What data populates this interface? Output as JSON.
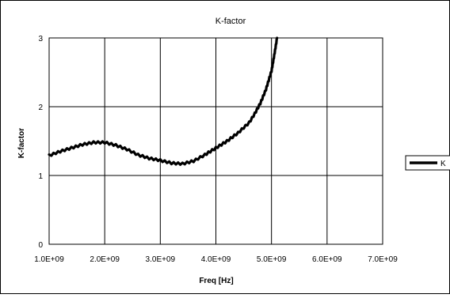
{
  "chart_data": {
    "type": "line",
    "title": "K-factor",
    "xlabel": "Freq [Hz]",
    "ylabel": "K-factor",
    "xlim": [
      1000000000,
      7000000000
    ],
    "ylim": [
      0,
      3
    ],
    "x_ticks": [
      1000000000,
      2000000000,
      3000000000,
      4000000000,
      5000000000,
      6000000000,
      7000000000
    ],
    "x_tick_labels": [
      "1.0E+09",
      "2.0E+09",
      "3.0E+09",
      "4.0E+09",
      "5.0E+09",
      "6.0E+09",
      "7.0E+09"
    ],
    "y_ticks": [
      0,
      1,
      2,
      3
    ],
    "y_tick_labels": [
      "0",
      "1",
      "2",
      "3"
    ],
    "grid": "horizontal and vertical",
    "legend_position": "right",
    "series": [
      {
        "name": "K",
        "color": "#000000",
        "x": [
          1000000000,
          1200000000,
          1400000000,
          1600000000,
          1800000000,
          2000000000,
          2200000000,
          2400000000,
          2600000000,
          2800000000,
          3000000000,
          3200000000,
          3400000000,
          3600000000,
          3800000000,
          4000000000,
          4200000000,
          4400000000,
          4600000000,
          4700000000,
          4800000000,
          4900000000,
          5000000000,
          5050000000,
          5100000000
        ],
        "y": [
          1.29,
          1.35,
          1.4,
          1.45,
          1.48,
          1.48,
          1.44,
          1.38,
          1.3,
          1.25,
          1.22,
          1.18,
          1.17,
          1.21,
          1.3,
          1.4,
          1.5,
          1.62,
          1.77,
          1.9,
          2.05,
          2.25,
          2.52,
          2.75,
          3.0
        ]
      }
    ]
  }
}
